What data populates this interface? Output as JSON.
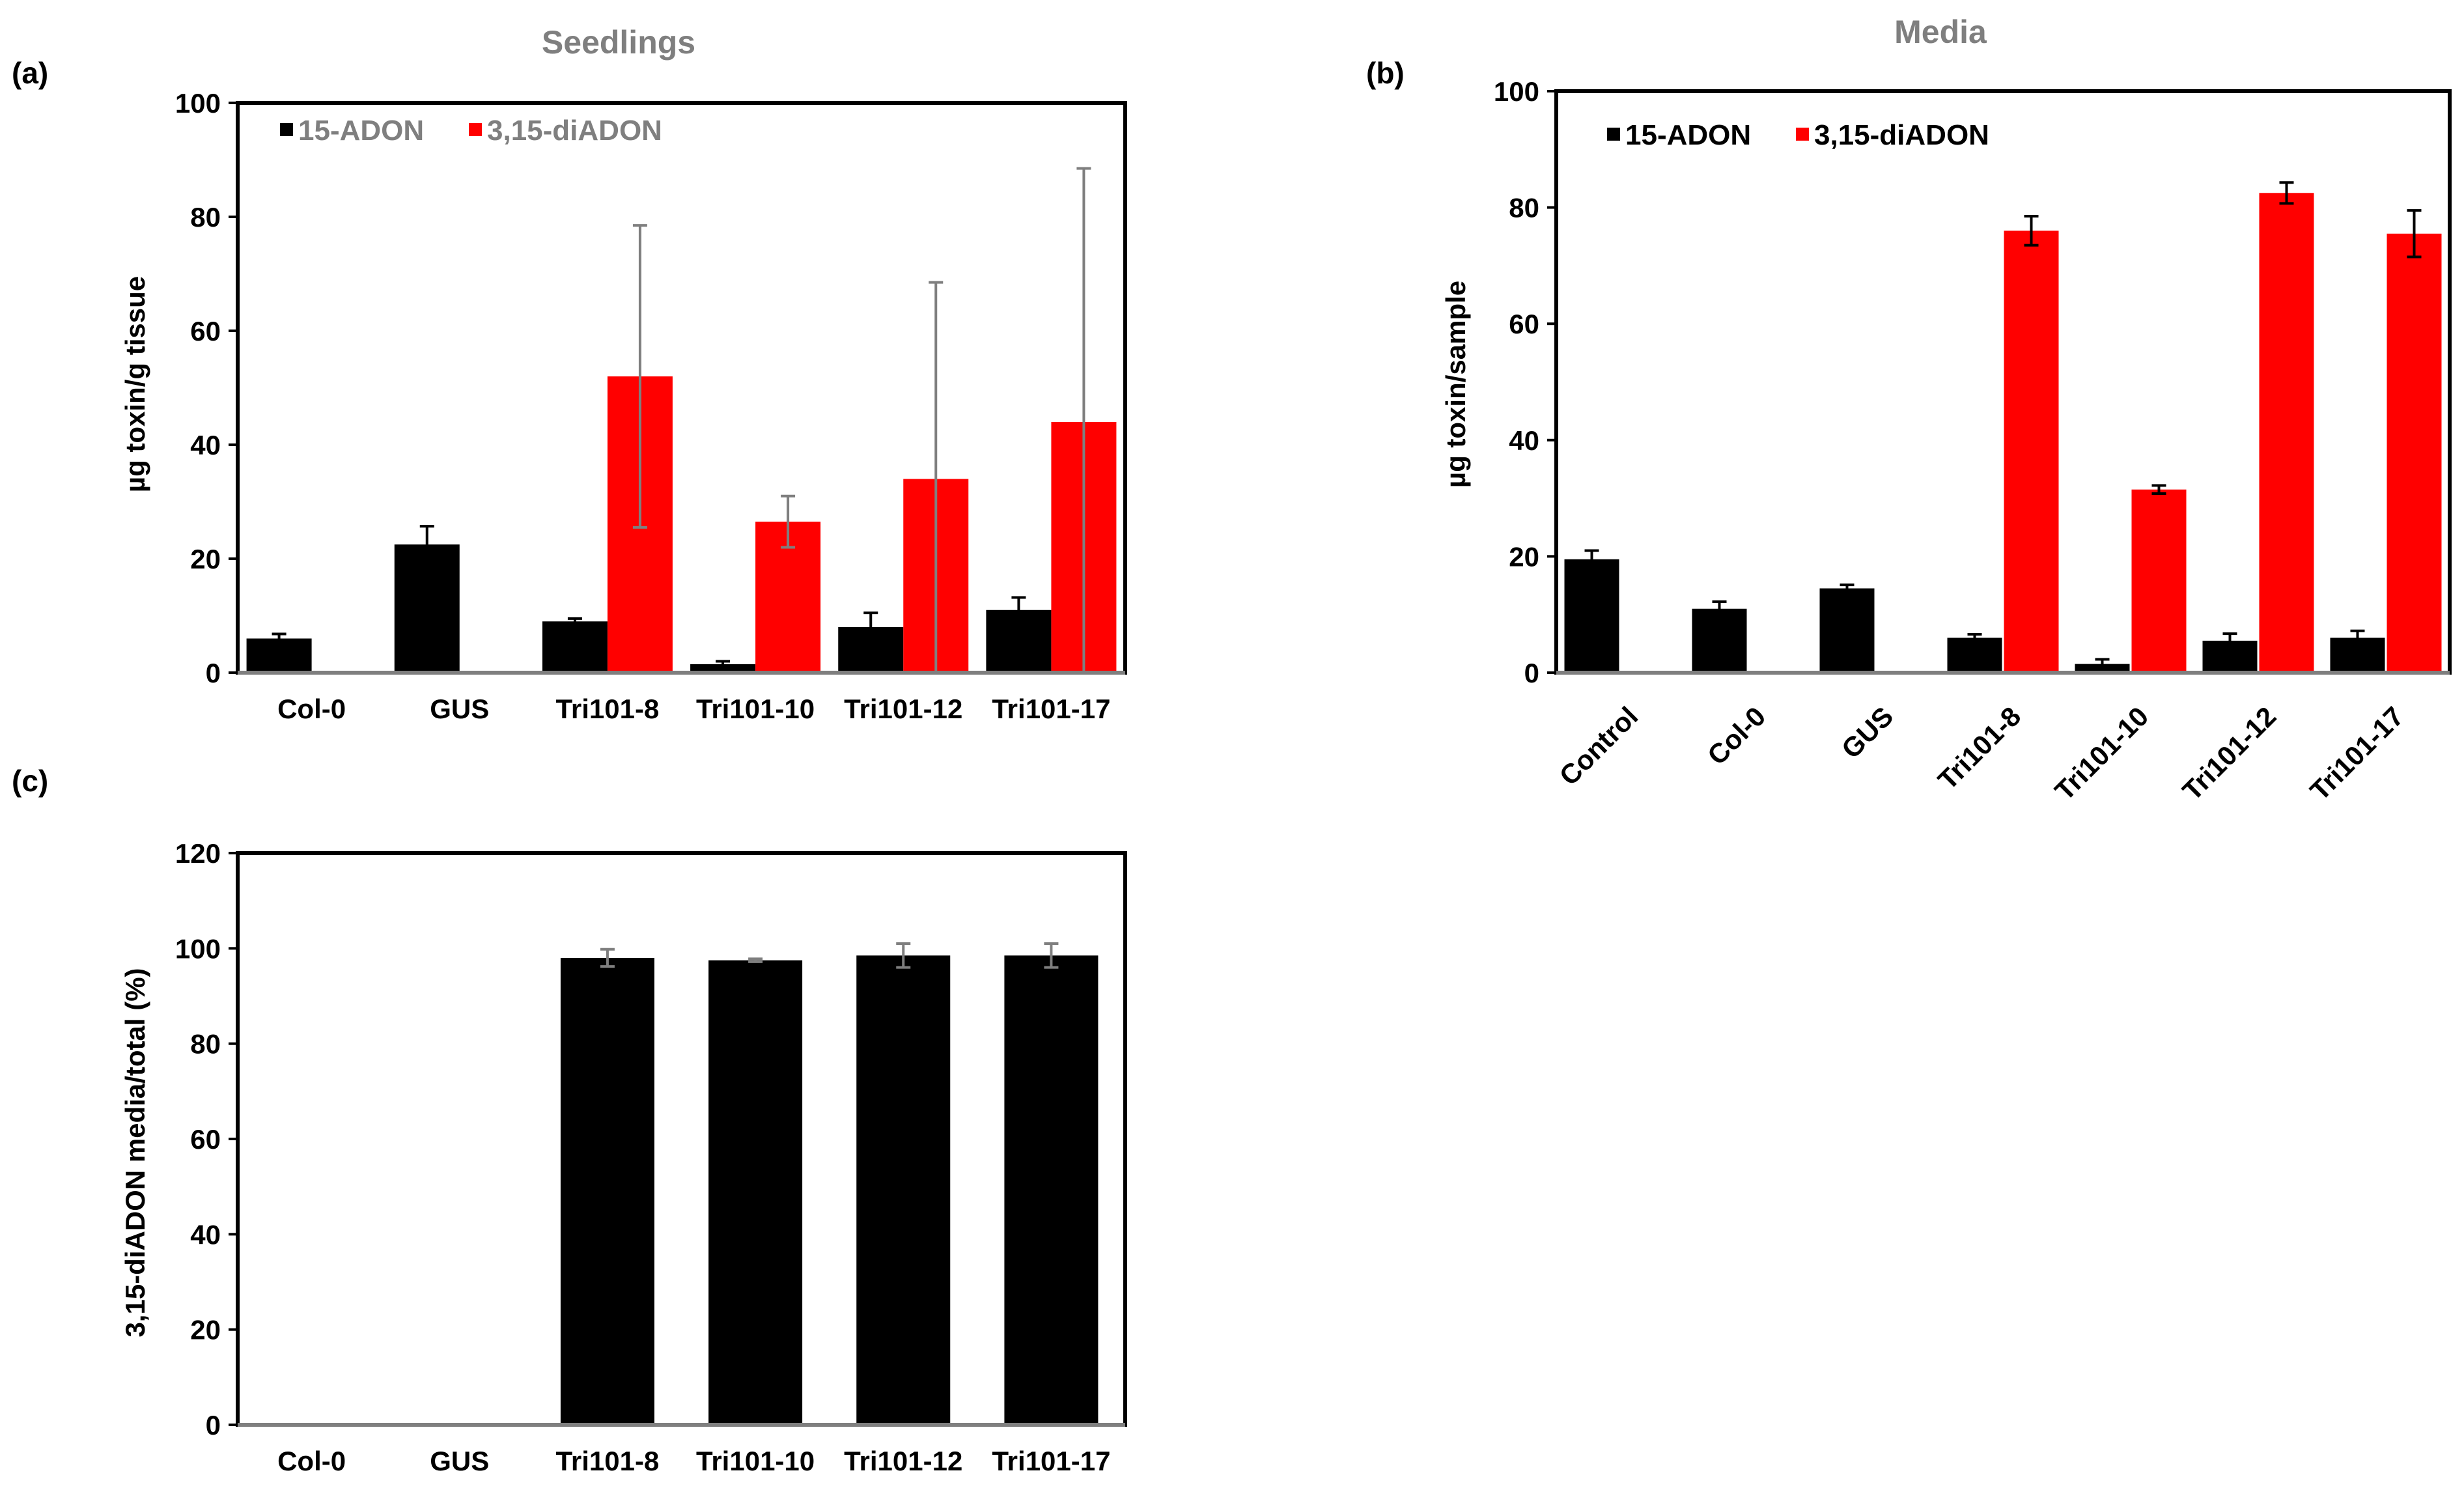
{
  "chart_data": [
    {
      "id": "a",
      "panel_label": "(a)",
      "type": "bar",
      "title": "Seedlings",
      "ylabel": "µg toxin/g tissue",
      "xlabel": "",
      "ylim": [
        0,
        100
      ],
      "yticks": [
        0,
        20,
        40,
        60,
        80,
        100
      ],
      "categories": [
        "Col-0",
        "GUS",
        "Tri101-8",
        "Tri101-10",
        "Tri101-12",
        "Tri101-17"
      ],
      "legend_location": "top-left",
      "series": [
        {
          "name": "15-ADON",
          "color": "#000000",
          "values": [
            6,
            22.5,
            9,
            1.5,
            8,
            11
          ],
          "errors": [
            0.8,
            3.2,
            0.5,
            0.5,
            2.5,
            2.2
          ],
          "error_color": "#000000"
        },
        {
          "name": "3,15-diADON",
          "color": "#ff0000",
          "values": [
            0,
            0,
            52,
            26.5,
            34,
            44
          ],
          "errors": [
            0,
            0,
            26.5,
            4.5,
            34.5,
            44.5
          ],
          "error_color": "#7f7f7f"
        }
      ]
    },
    {
      "id": "b",
      "panel_label": "(b)",
      "type": "bar",
      "title": "Media",
      "ylabel": "µg toxin/sample",
      "xlabel": "",
      "ylim": [
        0,
        100
      ],
      "yticks": [
        0,
        20,
        40,
        60,
        80,
        100
      ],
      "categories": [
        "Control",
        "Col-0",
        "GUS",
        "Tri101-8",
        "Tri101-10",
        "Tri101-12",
        "Tri101-17"
      ],
      "legend_location": "top-left",
      "series": [
        {
          "name": "15-ADON",
          "color": "#000000",
          "values": [
            19.5,
            11,
            14.5,
            6,
            1.5,
            5.5,
            6
          ],
          "errors": [
            1.5,
            1.2,
            0.6,
            0.6,
            0.8,
            1.2,
            1.2
          ],
          "error_color": "#000000"
        },
        {
          "name": "3,15-diADON",
          "color": "#ff0000",
          "values": [
            0,
            0,
            0,
            76,
            31.5,
            82.5,
            75.5
          ],
          "errors": [
            0,
            0,
            0,
            2.5,
            0.7,
            1.8,
            4
          ],
          "error_color": "#000000"
        }
      ]
    },
    {
      "id": "c",
      "panel_label": "(c)",
      "type": "bar",
      "title": "",
      "ylabel": "3,15-diADON media/total (%)",
      "xlabel": "",
      "ylim": [
        0,
        120
      ],
      "yticks": [
        0,
        20,
        40,
        60,
        80,
        100,
        120
      ],
      "categories": [
        "Col-0",
        "GUS",
        "Tri101-8",
        "Tri101-10",
        "Tri101-12",
        "Tri101-17"
      ],
      "series": [
        {
          "name": "3,15-diADON media/total",
          "color": "#000000",
          "values": [
            0,
            0,
            98,
            97.5,
            98.5,
            98.5
          ],
          "errors": [
            0,
            0,
            1.8,
            0.3,
            2.5,
            2.5
          ],
          "error_color": "#7f7f7f"
        }
      ]
    }
  ]
}
